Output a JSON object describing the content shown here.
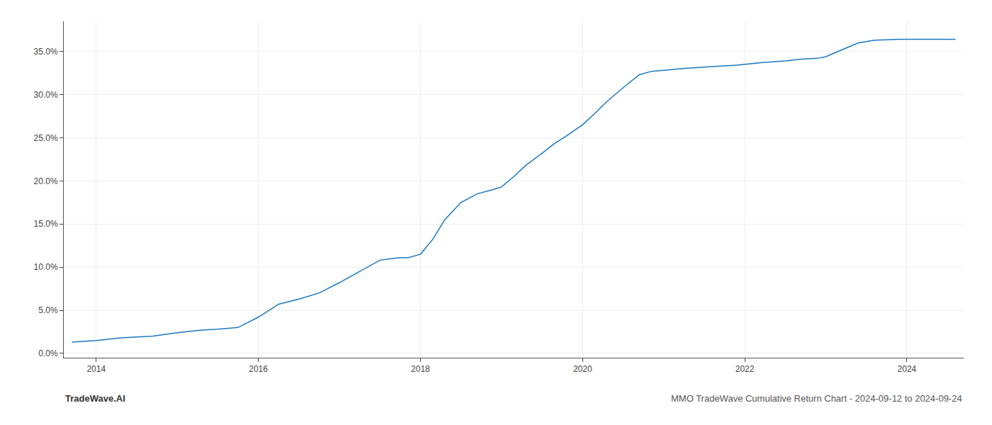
{
  "chart_data": {
    "type": "line",
    "title": "MMO TradeWave Cumulative Return Chart - 2024-09-12 to 2024-09-24",
    "annotations": [
      "TradeWave.AI"
    ],
    "color": "#1a78c2",
    "grid": true,
    "xlim": [
      2013.6,
      2024.7
    ],
    "ylim": [
      -0.005,
      0.385
    ],
    "xticks": [
      2014,
      2016,
      2018,
      2020,
      2022,
      2024
    ],
    "yticks": [
      {
        "value": 0.0,
        "label": "0.0%"
      },
      {
        "value": 0.05,
        "label": "5.0%"
      },
      {
        "value": 0.1,
        "label": "10.0%"
      },
      {
        "value": 0.15,
        "label": "15.0%"
      },
      {
        "value": 0.2,
        "label": "20.0%"
      },
      {
        "value": 0.25,
        "label": "25.0%"
      },
      {
        "value": 0.3,
        "label": "30.0%"
      },
      {
        "value": 0.35,
        "label": "35.0%"
      }
    ],
    "x": [
      2013.7,
      2014.0,
      2014.3,
      2014.7,
      2015.0,
      2015.3,
      2015.5,
      2015.75,
      2016.0,
      2016.25,
      2016.5,
      2016.75,
      2017.0,
      2017.25,
      2017.5,
      2017.65,
      2017.75,
      2017.85,
      2018.0,
      2018.15,
      2018.3,
      2018.5,
      2018.7,
      2018.9,
      2019.0,
      2019.15,
      2019.3,
      2019.5,
      2019.65,
      2019.8,
      2020.0,
      2020.15,
      2020.3,
      2020.5,
      2020.7,
      2020.85,
      2021.0,
      2021.1,
      2021.2,
      2021.35,
      2021.5,
      2021.7,
      2021.9,
      2022.0,
      2022.2,
      2022.5,
      2022.7,
      2022.9,
      2023.0,
      2023.2,
      2023.4,
      2023.6,
      2023.8,
      2023.9,
      2024.0,
      2024.2,
      2024.4,
      2024.6
    ],
    "values": [
      0.013,
      0.015,
      0.018,
      0.02,
      0.024,
      0.027,
      0.028,
      0.03,
      0.042,
      0.057,
      0.063,
      0.07,
      0.082,
      0.095,
      0.108,
      0.11,
      0.111,
      0.111,
      0.115,
      0.132,
      0.155,
      0.175,
      0.185,
      0.19,
      0.193,
      0.205,
      0.218,
      0.232,
      0.243,
      0.252,
      0.265,
      0.278,
      0.292,
      0.308,
      0.323,
      0.327,
      0.328,
      0.329,
      0.33,
      0.331,
      0.332,
      0.333,
      0.334,
      0.335,
      0.337,
      0.339,
      0.341,
      0.342,
      0.344,
      0.352,
      0.36,
      0.363,
      0.364,
      0.364,
      0.364,
      0.364,
      0.364,
      0.364
    ]
  }
}
